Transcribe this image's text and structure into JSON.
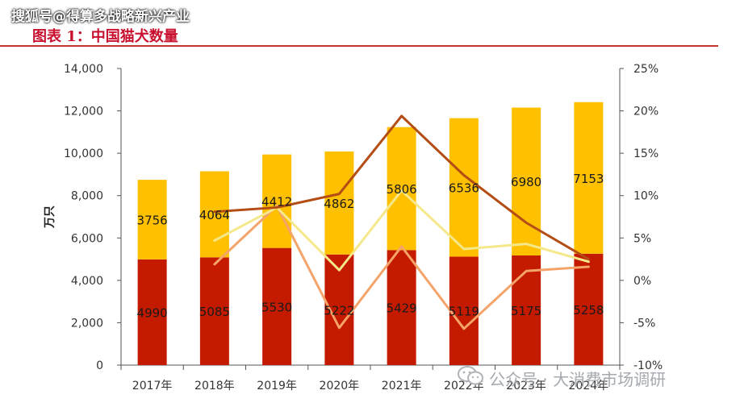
{
  "header": {
    "watermark": "搜狐号@得算多战略新兴产业",
    "figure_title": "图表 1：中国猫犬数量"
  },
  "footer": {
    "watermark": "公众号 · 大消费市场调研"
  },
  "icons": {
    "watermark_logo": "wechat-logo-icon"
  },
  "colors": {
    "cat_bar": "#c41a00",
    "dog_bar": "#ffc000",
    "line_dark": "#b34d14",
    "line_orange": "#f4a46a",
    "line_yellow": "#f5e88a",
    "rule": "#c0392b",
    "title": "#c8102e"
  },
  "chart_data": {
    "type": "bar",
    "stacked": true,
    "categories": [
      "2017年",
      "2018年",
      "2019年",
      "2020年",
      "2021年",
      "2022年",
      "2023年",
      "2024年"
    ],
    "series": [
      {
        "values": [
          4990,
          5085,
          5530,
          5222,
          5429,
          5119,
          5175,
          5258
        ]
      },
      {
        "values": [
          3756,
          4064,
          4412,
          4862,
          5806,
          6536,
          6980,
          7153
        ]
      }
    ],
    "lines": [
      {
        "axis": "right",
        "values": [
          null,
          8.1,
          8.6,
          10.2,
          19.4,
          12.4,
          6.8,
          2.5
        ]
      },
      {
        "axis": "right",
        "values": [
          null,
          1.9,
          8.8,
          -5.6,
          4.0,
          -5.7,
          1.1,
          1.6
        ]
      },
      {
        "axis": "right",
        "values": [
          null,
          4.7,
          8.6,
          1.2,
          10.6,
          3.7,
          4.3,
          2.2
        ]
      }
    ],
    "ylabel": "万只",
    "ylim": [
      0,
      14000
    ],
    "yticks": [
      0,
      2000,
      4000,
      6000,
      8000,
      10000,
      12000,
      14000
    ],
    "ytick_labels": [
      "0",
      "2,000",
      "4,000",
      "6,000",
      "8,000",
      "10,000",
      "12,000",
      "14,000"
    ],
    "y2lim": [
      -10,
      25
    ],
    "y2ticks": [
      -10,
      -5,
      0,
      5,
      10,
      15,
      20,
      25
    ],
    "y2tick_labels": [
      "-10%",
      "-5%",
      "0%",
      "5%",
      "10%",
      "15%",
      "20%",
      "25%"
    ],
    "grid": false,
    "legend": "none"
  }
}
